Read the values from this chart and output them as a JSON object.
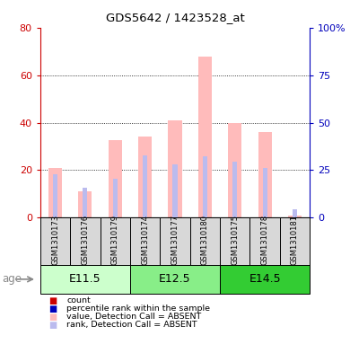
{
  "title": "GDS5642 / 1423528_at",
  "samples": [
    "GSM1310173",
    "GSM1310176",
    "GSM1310179",
    "GSM1310174",
    "GSM1310177",
    "GSM1310180",
    "GSM1310175",
    "GSM1310178",
    "GSM1310181"
  ],
  "bar_value_absent": [
    21.0,
    11.0,
    32.5,
    34.0,
    41.0,
    68.0,
    40.0,
    36.0,
    0.5
  ],
  "bar_rank_absent": [
    22.5,
    15.5,
    20.5,
    32.5,
    28.0,
    32.0,
    29.5,
    26.0,
    4.0
  ],
  "ylim_left": [
    0,
    80
  ],
  "ylim_right": [
    0,
    100
  ],
  "yticks_left": [
    0,
    20,
    40,
    60,
    80
  ],
  "yticks_right": [
    0,
    25,
    50,
    75,
    100
  ],
  "left_axis_color": "#cc0000",
  "right_axis_color": "#0000bb",
  "bar_absent_color": "#ffbbbb",
  "rank_absent_color": "#bbbbee",
  "count_color": "#cc0000",
  "rank_color": "#0000bb",
  "sample_bg_color": "#d8d8d8",
  "group_configs": [
    {
      "label": "E11.5",
      "start": 0,
      "end": 3,
      "color": "#ccffcc"
    },
    {
      "label": "E12.5",
      "start": 3,
      "end": 6,
      "color": "#88ee88"
    },
    {
      "label": "E14.5",
      "start": 6,
      "end": 9,
      "color": "#33cc33"
    }
  ],
  "legend_items": [
    {
      "color": "#cc0000",
      "label": "count"
    },
    {
      "color": "#0000bb",
      "label": "percentile rank within the sample"
    },
    {
      "color": "#ffbbbb",
      "label": "value, Detection Call = ABSENT"
    },
    {
      "color": "#bbbbee",
      "label": "rank, Detection Call = ABSENT"
    }
  ]
}
